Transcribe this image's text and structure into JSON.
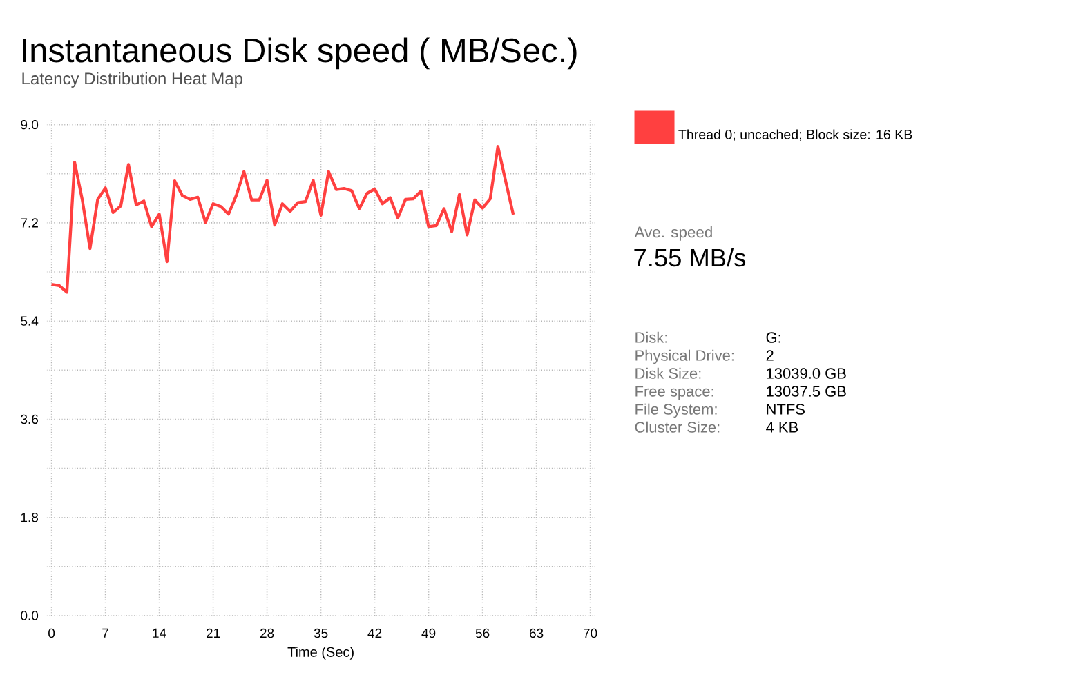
{
  "chart_data": {
    "type": "line",
    "title": "Instantaneous Disk speed ( MB/Sec.)",
    "subtitle": "Latency Distribution Heat Map",
    "xlabel": "Time (Sec)",
    "x": [
      0,
      1,
      2,
      3,
      4,
      5,
      6,
      7,
      8,
      9,
      10,
      11,
      12,
      13,
      14,
      15,
      16,
      17,
      18,
      19,
      20,
      21,
      22,
      23,
      24,
      25,
      26,
      27,
      28,
      29,
      30,
      31,
      32,
      33,
      34,
      35,
      36,
      37,
      38,
      39,
      40,
      41,
      42,
      43,
      44,
      45,
      46,
      47,
      48,
      49,
      50,
      51,
      52,
      53,
      54,
      55,
      56,
      57,
      58,
      59,
      60
    ],
    "series": [
      {
        "name": "Thread 0; uncached; Block size: 16 KB",
        "color": "#ff4040",
        "values": [
          6.07,
          6.05,
          5.93,
          8.31,
          7.62,
          6.73,
          7.63,
          7.84,
          7.39,
          7.51,
          8.27,
          7.53,
          7.6,
          7.13,
          7.36,
          6.49,
          7.97,
          7.7,
          7.63,
          7.67,
          7.21,
          7.55,
          7.5,
          7.36,
          7.7,
          8.14,
          7.62,
          7.62,
          7.98,
          7.16,
          7.55,
          7.41,
          7.57,
          7.59,
          7.98,
          7.34,
          8.14,
          7.81,
          7.83,
          7.79,
          7.46,
          7.74,
          7.82,
          7.55,
          7.66,
          7.29,
          7.63,
          7.64,
          7.78,
          7.13,
          7.15,
          7.46,
          7.04,
          7.72,
          6.98,
          7.62,
          7.47,
          7.64,
          8.6,
          7.97,
          7.35
        ]
      }
    ],
    "xlim": [
      0,
      70
    ],
    "xticks": [
      0,
      7,
      14,
      21,
      28,
      35,
      42,
      49,
      56,
      63,
      70
    ],
    "ylim": [
      0,
      9
    ],
    "yticks": [
      {
        "value": 0,
        "label": "0.0"
      },
      {
        "value": 0.9,
        "label": null
      },
      {
        "value": 1.8,
        "label": "1.8"
      },
      {
        "value": 2.7,
        "label": null
      },
      {
        "value": 3.6,
        "label": "3.6"
      },
      {
        "value": 4.5,
        "label": null
      },
      {
        "value": 5.4,
        "label": "5.4"
      },
      {
        "value": 6.3,
        "label": null
      },
      {
        "value": 7.2,
        "label": "7.2"
      },
      {
        "value": 8.1,
        "label": null
      },
      {
        "value": 9,
        "label": "9.0"
      }
    ],
    "grid": true,
    "legend": "right",
    "annotations": [
      "Ave. speed",
      "7.55 MB/s",
      "Disk:",
      "G:",
      "Physical Drive:",
      "2",
      "Disk Size:",
      "13039.0 GB",
      "Free space:",
      "13037.5 GB",
      "File System:",
      "NTFS",
      "Cluster Size:",
      "4 KB"
    ]
  }
}
